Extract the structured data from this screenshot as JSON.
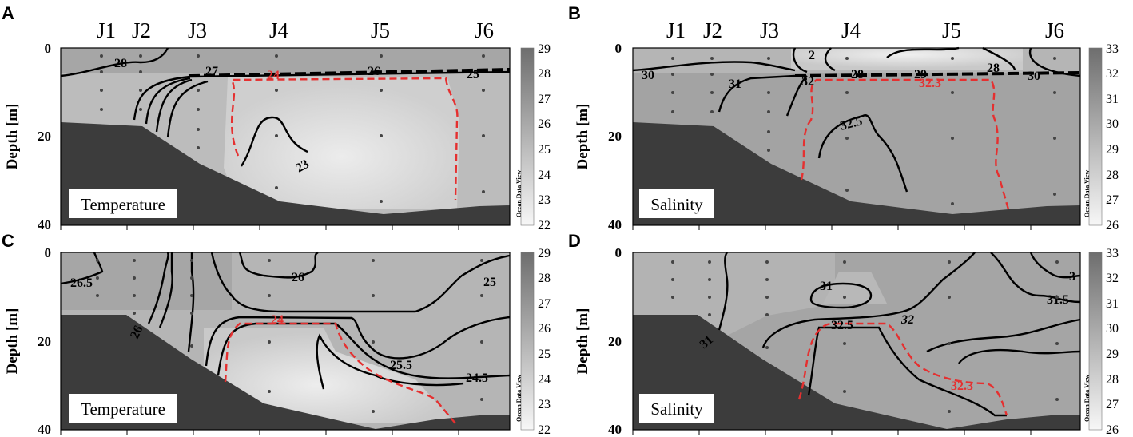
{
  "colors": {
    "field_light": "#e6e6e6",
    "field_mid": "#bdbdbd",
    "field_dark": "#9e9e9e",
    "bathymetry": "#3c3c3c",
    "contour": "#000000",
    "highlight_contour": "#e53030",
    "station_dot": "#444444"
  },
  "chart_data": [
    {
      "panel": "A",
      "type": "heatmap",
      "variable_label": "Temperature",
      "ylabel": "Depth [m]",
      "y_ticks": [
        "0",
        "20",
        "40"
      ],
      "ylim": [
        40,
        0
      ],
      "stations": [
        "J1",
        "J2",
        "J3",
        "J4",
        "J5",
        "J6"
      ],
      "colorbar": {
        "ticks": [
          "29",
          "28",
          "27",
          "26",
          "25",
          "24",
          "23",
          "22"
        ],
        "range": [
          22,
          29
        ],
        "credit": "Ocean Data View"
      },
      "contour_labels": [
        "28",
        "27",
        "24",
        "26",
        "25",
        "23"
      ],
      "highlight_contour": "24"
    },
    {
      "panel": "B",
      "type": "heatmap",
      "variable_label": "Salinity",
      "ylabel": "Depth [m]",
      "y_ticks": [
        "0",
        "20",
        "40"
      ],
      "ylim": [
        40,
        0
      ],
      "stations": [
        "J1",
        "J2",
        "J3",
        "J4",
        "J5",
        "J6"
      ],
      "colorbar": {
        "ticks": [
          "33",
          "32",
          "31",
          "30",
          "29",
          "28",
          "27",
          "26"
        ],
        "range": [
          26,
          33
        ],
        "credit": "Ocean Data View"
      },
      "contour_labels": [
        "30",
        "31",
        "32",
        "28",
        "29",
        "28",
        "30",
        "32.3",
        "32.5",
        "2"
      ],
      "highlight_contour": "32.3"
    },
    {
      "panel": "C",
      "type": "heatmap",
      "variable_label": "Temperature",
      "ylabel": "Depth [m]",
      "y_ticks": [
        "0",
        "20",
        "40"
      ],
      "ylim": [
        40,
        0
      ],
      "colorbar": {
        "ticks": [
          "29",
          "28",
          "27",
          "26",
          "25",
          "24",
          "23",
          "22"
        ],
        "range": [
          22,
          29
        ],
        "credit": "Ocean Data View"
      },
      "contour_labels": [
        "26.5",
        "26",
        "26",
        "25",
        "24",
        "25.5",
        "24.5"
      ],
      "highlight_contour": "24"
    },
    {
      "panel": "D",
      "type": "heatmap",
      "variable_label": "Salinity",
      "ylabel": "Depth [m]",
      "y_ticks": [
        "0",
        "20",
        "40"
      ],
      "ylim": [
        40,
        0
      ],
      "colorbar": {
        "ticks": [
          "33",
          "32",
          "31",
          "30",
          "29",
          "28",
          "27",
          "26"
        ],
        "range": [
          26,
          33
        ],
        "credit": "Ocean Data View"
      },
      "contour_labels": [
        "31",
        "31",
        "32.5",
        "32",
        "31.5",
        "3",
        "32.3"
      ],
      "highlight_contour": "32.3"
    }
  ]
}
